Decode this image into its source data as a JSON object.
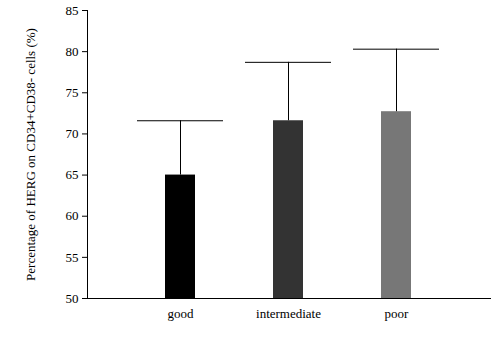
{
  "chart_data": {
    "type": "bar",
    "y_label": "Percentage of HERG on CD34+CD38- cells (%)",
    "categories": [
      "good",
      "intermediate",
      "poor"
    ],
    "values": [
      65.0,
      71.6,
      72.7
    ],
    "errors": [
      6.6,
      7.1,
      7.6
    ],
    "colors": [
      "#000000",
      "#333333",
      "#777777"
    ],
    "ylim": [
      50,
      85
    ],
    "yticks": [
      50,
      55,
      60,
      65,
      70,
      75,
      80,
      85
    ],
    "grid": false
  }
}
